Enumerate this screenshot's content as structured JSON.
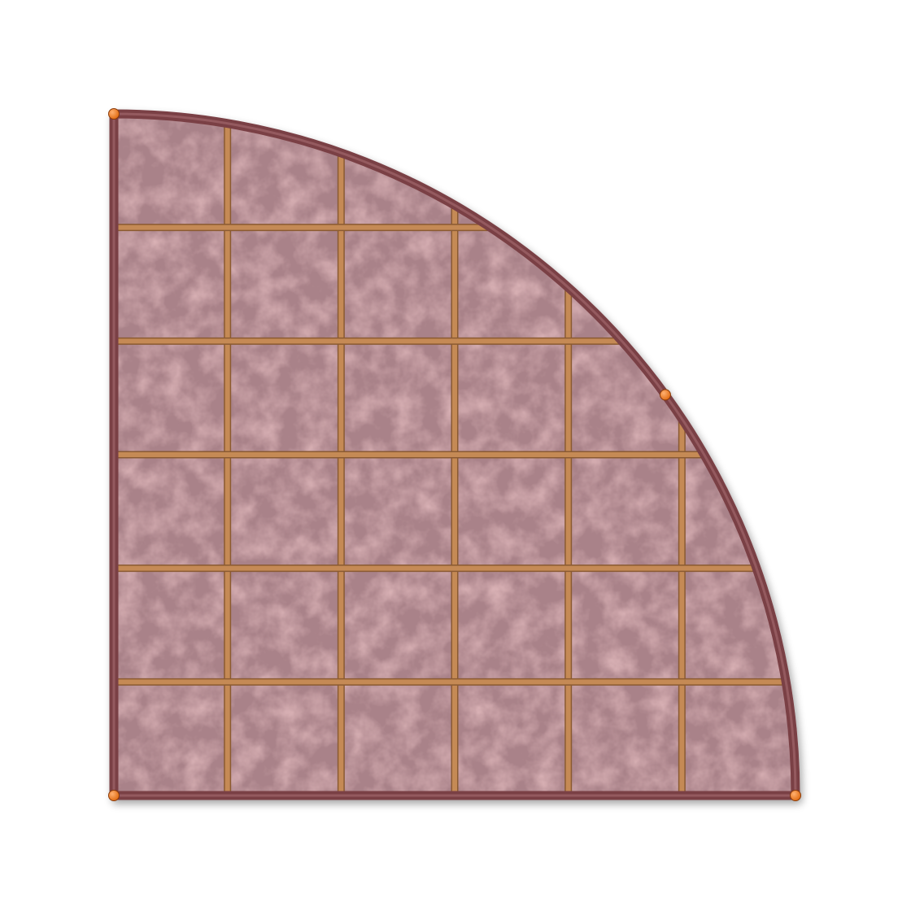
{
  "tile": {
    "shape": "quarter-circle",
    "grid": {
      "rows": 6,
      "cols": 6
    },
    "colors": {
      "fill": "#a98289",
      "fill_mottle": "#b7777b",
      "grout": "#c58a55",
      "grout_dark": "#8a5a33",
      "rim": "#7a3f44",
      "rim_highlight": "#a0666b",
      "rivet": "#e06a10",
      "rivet_highlight": "#ffb070",
      "shadow": "#000000"
    },
    "rivets": [
      "top-left",
      "arc-upper",
      "bottom-left",
      "bottom-right"
    ]
  }
}
